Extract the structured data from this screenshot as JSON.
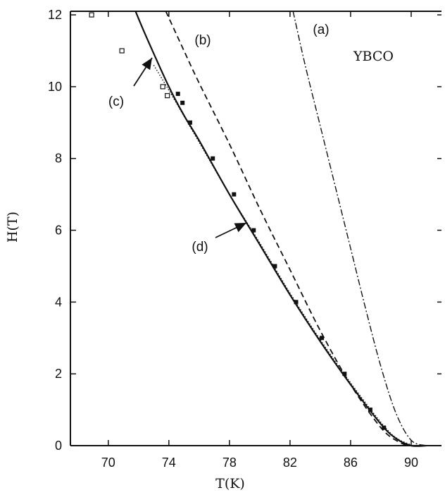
{
  "chart_data": {
    "type": "scatter",
    "title": "",
    "xlabel": "T(K)",
    "ylabel": "H(T)",
    "xlim": [
      67.5,
      92
    ],
    "ylim": [
      0,
      12.1
    ],
    "x_ticks": [
      70,
      74,
      78,
      82,
      86,
      90
    ],
    "y_ticks": [
      0,
      2,
      4,
      6,
      8,
      10,
      12
    ],
    "grid": false,
    "legend": "none",
    "sample_label": "YBCO",
    "colors": {
      "line": "#111111",
      "background": "#ffffff"
    },
    "series": [
      {
        "label": "(a)",
        "style": "dash-dot",
        "points": [
          [
            82.2,
            12.1
          ],
          [
            83.0,
            10.6
          ],
          [
            84.0,
            8.9
          ],
          [
            85.0,
            7.2
          ],
          [
            86.0,
            5.5
          ],
          [
            87.0,
            3.8
          ],
          [
            88.0,
            2.2
          ],
          [
            89.0,
            0.9
          ],
          [
            90.0,
            0.15
          ],
          [
            91.0,
            0.0
          ]
        ]
      },
      {
        "label": "(b)",
        "style": "dashed",
        "points": [
          [
            73.8,
            12.1
          ],
          [
            75.0,
            11.0
          ],
          [
            76.0,
            10.1
          ],
          [
            78.0,
            8.4
          ],
          [
            80.0,
            6.6
          ],
          [
            82.0,
            4.9
          ],
          [
            84.0,
            3.2
          ],
          [
            86.0,
            1.7
          ],
          [
            88.0,
            0.5
          ],
          [
            89.2,
            0.1
          ],
          [
            90.0,
            0.0
          ],
          [
            91.0,
            0.0
          ]
        ]
      },
      {
        "label": "(c)",
        "style": "solid",
        "points": [
          [
            71.8,
            12.1
          ],
          [
            72.5,
            11.4
          ],
          [
            74.0,
            10.0
          ],
          [
            75.0,
            9.2
          ],
          [
            76.0,
            8.5
          ],
          [
            78.0,
            7.0
          ],
          [
            80.0,
            5.6
          ],
          [
            82.0,
            4.2
          ],
          [
            84.0,
            2.9
          ],
          [
            86.0,
            1.7
          ],
          [
            88.0,
            0.6
          ],
          [
            89.0,
            0.2
          ],
          [
            90.0,
            0.0
          ],
          [
            91.0,
            0.0
          ]
        ]
      },
      {
        "label": "(d)",
        "style": "dotted",
        "points": [
          [
            73.0,
            10.6
          ],
          [
            74.0,
            9.9
          ],
          [
            76.0,
            8.45
          ],
          [
            78.0,
            7.0
          ],
          [
            80.0,
            5.65
          ],
          [
            82.0,
            4.25
          ],
          [
            84.0,
            2.95
          ],
          [
            86.0,
            1.75
          ],
          [
            88.0,
            0.65
          ],
          [
            89.0,
            0.22
          ],
          [
            90.0,
            0.02
          ]
        ]
      }
    ],
    "markers_filled": {
      "x": [
        74.6,
        74.9,
        75.4,
        76.9,
        78.3,
        79.6,
        81.0,
        82.4,
        84.1,
        85.6,
        87.3,
        88.2
      ],
      "y": [
        9.8,
        9.55,
        9.0,
        8.0,
        7.0,
        6.0,
        5.0,
        4.0,
        3.0,
        2.0,
        1.0,
        0.5
      ]
    },
    "markers_open": {
      "x": [
        68.9,
        70.9,
        73.6,
        73.9
      ],
      "y": [
        12.0,
        11.0,
        10.0,
        9.75
      ]
    }
  }
}
